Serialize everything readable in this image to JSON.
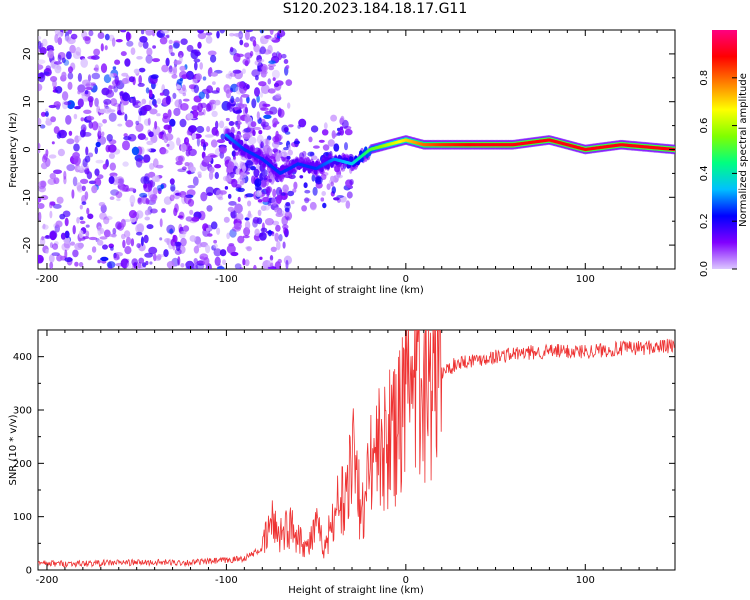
{
  "title": "S120.2023.184.18.17.G11",
  "chart_data": [
    {
      "type": "heatmap",
      "xlabel": "Height of straight line (km)",
      "ylabel": "Frequency (Hz)",
      "xlim": [
        -205,
        150
      ],
      "ylim": [
        -25,
        25
      ],
      "xticks": [
        -200,
        -100,
        0,
        100
      ],
      "yticks": [
        -20,
        -10,
        0,
        10,
        20
      ],
      "colorbar": {
        "label": "Normalized spectral amplitude",
        "range": [
          0,
          1
        ],
        "ticks": [
          "0.0",
          "0.2",
          "0.4",
          "0.6",
          "0.8"
        ],
        "colormap": [
          "#dcc8ff",
          "#8000ff",
          "#0000ff",
          "#00c0ff",
          "#00ff80",
          "#80ff00",
          "#ffff00",
          "#ff8000",
          "#ff0000",
          "#ff0080"
        ]
      },
      "ridge": {
        "x": [
          -100,
          -90,
          -80,
          -70,
          -60,
          -50,
          -40,
          -30,
          -20,
          -10,
          0,
          10,
          20,
          40,
          60,
          80,
          90,
          100,
          120,
          150
        ],
        "freq": [
          3,
          0,
          -2,
          -5,
          -3,
          -4,
          -2,
          -3,
          0,
          1,
          2,
          1,
          1,
          1,
          1,
          2,
          1,
          0,
          1,
          0
        ],
        "amplitude": [
          0.3,
          0.25,
          0.25,
          0.25,
          0.25,
          0.25,
          0.3,
          0.35,
          0.5,
          0.6,
          0.7,
          0.8,
          0.85,
          0.9,
          0.9,
          0.9,
          0.9,
          0.9,
          0.9,
          0.9
        ]
      }
    },
    {
      "type": "line",
      "xlabel": "Height of straight line (km)",
      "ylabel": "SNR (10 * v/v)",
      "xlim": [
        -205,
        150
      ],
      "ylim": [
        0,
        450
      ],
      "xticks": [
        -200,
        -100,
        0,
        100
      ],
      "yticks": [
        0,
        100,
        200,
        300,
        400
      ],
      "color": "#ee3333",
      "series": [
        {
          "x": [
            -205,
            -180,
            -160,
            -140,
            -120,
            -100,
            -90,
            -80,
            -75,
            -70,
            -65,
            -60,
            -55,
            -50,
            -45,
            -40,
            -35,
            -30,
            -25,
            -20,
            -15,
            -10,
            -5,
            0,
            5,
            10,
            15,
            20,
            25,
            30,
            40,
            50,
            60,
            80,
            100,
            120,
            150
          ],
          "values": [
            12,
            12,
            14,
            14,
            14,
            18,
            22,
            40,
            90,
            70,
            80,
            70,
            40,
            80,
            40,
            110,
            140,
            250,
            90,
            200,
            230,
            220,
            260,
            320,
            330,
            350,
            360,
            370,
            380,
            390,
            395,
            400,
            405,
            410,
            410,
            415,
            420
          ]
        }
      ]
    }
  ]
}
